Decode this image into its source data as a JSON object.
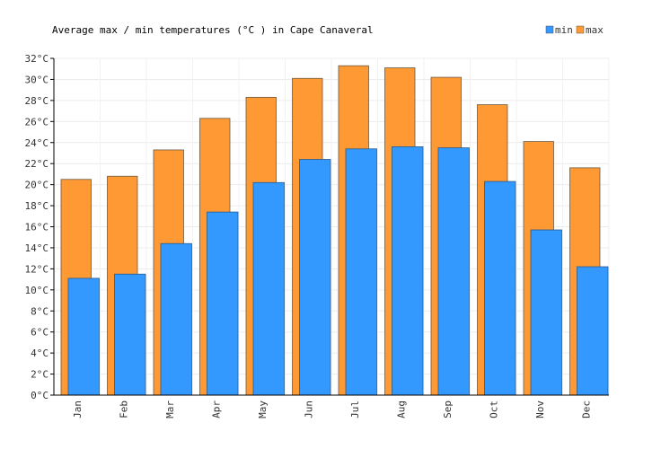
{
  "chart_data": {
    "type": "bar",
    "title": "Average max / min temperatures (°C ) in Cape Canaveral",
    "categories": [
      "Jan",
      "Feb",
      "Mar",
      "Apr",
      "May",
      "Jun",
      "Jul",
      "Aug",
      "Sep",
      "Oct",
      "Nov",
      "Dec"
    ],
    "series": [
      {
        "name": "max",
        "color": "#FF9933",
        "values": [
          20.5,
          20.8,
          23.3,
          26.3,
          28.3,
          30.1,
          31.3,
          31.1,
          30.2,
          27.6,
          24.1,
          21.6
        ]
      },
      {
        "name": "min",
        "color": "#3399FF",
        "values": [
          11.1,
          11.5,
          14.4,
          17.4,
          20.2,
          22.4,
          23.4,
          23.6,
          23.5,
          20.3,
          15.7,
          12.2
        ]
      }
    ],
    "ylim": [
      0,
      32
    ],
    "ytick_step": 2,
    "ytick_suffix": "°C",
    "grid": true,
    "legend": {
      "position": "top-right",
      "items": [
        "min",
        "max"
      ]
    },
    "xlabel": "",
    "ylabel": ""
  }
}
